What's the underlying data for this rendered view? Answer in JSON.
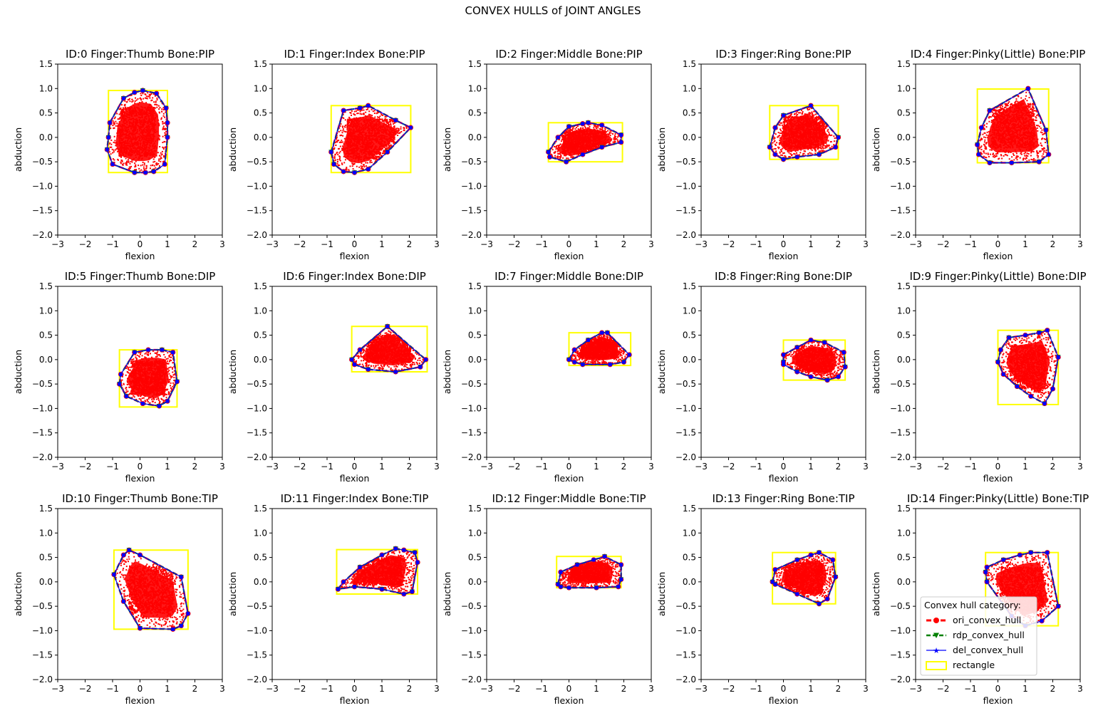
{
  "figure_title": "CONVEX HULLS of JOINT ANGLES",
  "colors": {
    "points": "#ff0000",
    "ori_hull": "#ff0000",
    "rdp_hull": "#008000",
    "del_hull": "#0000ff",
    "rectangle": "#ffff00",
    "frame": "#000000"
  },
  "legend": {
    "title": "Convex hull category:",
    "entries": [
      "ori_convex_hull",
      "rdp_convex_hull",
      "del_convex_hull",
      "rectangle"
    ]
  },
  "chart_data": [
    {
      "type": "scatter",
      "title": "ID:0  Finger:Thumb  Bone:PIP",
      "xlabel": "flexion",
      "ylabel": "abduction",
      "xlim": [
        -3,
        3
      ],
      "ylim": [
        -2,
        1.5
      ],
      "xticks": [
        "−3",
        "−2",
        "−1",
        "0",
        "1",
        "2",
        "3"
      ],
      "yticks": [
        "−2.0",
        "−1.5",
        "−1.0",
        "−0.5",
        "0.0",
        "0.5",
        "1.0",
        "1.5"
      ],
      "hull": [
        [
          -1.15,
          0.0
        ],
        [
          -1.1,
          0.3
        ],
        [
          -0.6,
          0.8
        ],
        [
          -0.2,
          0.92
        ],
        [
          0.1,
          0.96
        ],
        [
          0.6,
          0.9
        ],
        [
          0.95,
          0.6
        ],
        [
          1.0,
          0.3
        ],
        [
          1.0,
          0.0
        ],
        [
          0.9,
          -0.55
        ],
        [
          0.5,
          -0.7
        ],
        [
          0.2,
          -0.72
        ],
        [
          -0.2,
          -0.72
        ],
        [
          -1.0,
          -0.55
        ],
        [
          -1.2,
          -0.25
        ]
      ],
      "rect": [
        -1.15,
        -0.72,
        1.0,
        0.96
      ]
    },
    {
      "type": "scatter",
      "title": "ID:1  Finger:Index  Bone:PIP",
      "xlabel": "flexion",
      "ylabel": "abduction",
      "xlim": [
        -3,
        3
      ],
      "ylim": [
        -2,
        1.5
      ],
      "xticks": [
        "−3",
        "−2",
        "−1",
        "0",
        "1",
        "2",
        "3"
      ],
      "yticks": [
        "−2.0",
        "−1.5",
        "−1.0",
        "−0.5",
        "0.0",
        "0.5",
        "1.0",
        "1.5"
      ],
      "hull": [
        [
          -0.85,
          -0.3
        ],
        [
          -0.4,
          0.55
        ],
        [
          0.2,
          0.6
        ],
        [
          0.5,
          0.65
        ],
        [
          1.5,
          0.35
        ],
        [
          2.05,
          0.2
        ],
        [
          1.2,
          -0.3
        ],
        [
          0.5,
          -0.65
        ],
        [
          0.0,
          -0.72
        ],
        [
          -0.4,
          -0.7
        ],
        [
          -0.75,
          -0.55
        ]
      ],
      "rect": [
        -0.85,
        -0.72,
        2.05,
        0.65
      ]
    },
    {
      "type": "scatter",
      "title": "ID:2  Finger:Middle  Bone:PIP",
      "xlabel": "flexion",
      "ylabel": "abduction",
      "xlim": [
        -3,
        3
      ],
      "ylim": [
        -2,
        1.5
      ],
      "xticks": [
        "−3",
        "−2",
        "−1",
        "0",
        "1",
        "2",
        "3"
      ],
      "yticks": [
        "−2.0",
        "−1.5",
        "−1.0",
        "−0.5",
        "0.0",
        "0.5",
        "1.0",
        "1.5"
      ],
      "hull": [
        [
          -0.75,
          -0.3
        ],
        [
          -0.4,
          0.0
        ],
        [
          0.0,
          0.22
        ],
        [
          0.5,
          0.28
        ],
        [
          0.7,
          0.3
        ],
        [
          1.2,
          0.25
        ],
        [
          1.9,
          0.05
        ],
        [
          1.9,
          -0.1
        ],
        [
          1.2,
          -0.2
        ],
        [
          0.5,
          -0.35
        ],
        [
          -0.1,
          -0.5
        ],
        [
          -0.7,
          -0.4
        ]
      ],
      "rect": [
        -0.75,
        -0.5,
        1.95,
        0.3
      ]
    },
    {
      "type": "scatter",
      "title": "ID:3  Finger:Ring  Bone:PIP",
      "xlabel": "flexion",
      "ylabel": "abduction",
      "xlim": [
        -3,
        3
      ],
      "ylim": [
        -2,
        1.5
      ],
      "xticks": [
        "−3",
        "−2",
        "−1",
        "0",
        "1",
        "2",
        "3"
      ],
      "yticks": [
        "−2.0",
        "−1.5",
        "−1.0",
        "−0.5",
        "0.0",
        "0.5",
        "1.0",
        "1.5"
      ],
      "hull": [
        [
          -0.5,
          -0.2
        ],
        [
          -0.3,
          0.2
        ],
        [
          0.0,
          0.45
        ],
        [
          1.0,
          0.65
        ],
        [
          2.0,
          0.0
        ],
        [
          1.9,
          -0.2
        ],
        [
          1.3,
          -0.35
        ],
        [
          0.5,
          -0.4
        ],
        [
          0.0,
          -0.45
        ],
        [
          -0.3,
          -0.35
        ]
      ],
      "rect": [
        -0.5,
        -0.45,
        2.0,
        0.65
      ]
    },
    {
      "type": "scatter",
      "title": "ID:4  Finger:Pinky(Little)  Bone:PIP",
      "xlabel": "flexion",
      "ylabel": "abduction",
      "xlim": [
        -3,
        3
      ],
      "ylim": [
        -2,
        1.5
      ],
      "xticks": [
        "−3",
        "−2",
        "−1",
        "0",
        "1",
        "2",
        "3"
      ],
      "yticks": [
        "−2.0",
        "−1.5",
        "−1.0",
        "−0.5",
        "0.0",
        "0.5",
        "1.0",
        "1.5"
      ],
      "hull": [
        [
          -0.75,
          -0.15
        ],
        [
          -0.6,
          0.2
        ],
        [
          -0.3,
          0.55
        ],
        [
          1.1,
          1.0
        ],
        [
          1.75,
          0.15
        ],
        [
          1.85,
          -0.35
        ],
        [
          1.5,
          -0.5
        ],
        [
          0.5,
          -0.52
        ],
        [
          -0.3,
          -0.52
        ],
        [
          -0.7,
          -0.35
        ]
      ],
      "rect": [
        -0.75,
        -0.52,
        1.85,
        0.99
      ]
    },
    {
      "type": "scatter",
      "title": "ID:5  Finger:Thumb  Bone:DIP",
      "xlabel": "flexion",
      "ylabel": "abduction",
      "xlim": [
        -3,
        3
      ],
      "ylim": [
        -2,
        1.5
      ],
      "xticks": [
        "−3",
        "−2",
        "−1",
        "0",
        "1",
        "2",
        "3"
      ],
      "yticks": [
        "−2.0",
        "−1.5",
        "−1.0",
        "−0.5",
        "0.0",
        "0.5",
        "1.0",
        "1.5"
      ],
      "hull": [
        [
          -0.75,
          -0.5
        ],
        [
          -0.7,
          -0.3
        ],
        [
          -0.2,
          0.15
        ],
        [
          0.3,
          0.2
        ],
        [
          0.8,
          0.2
        ],
        [
          1.2,
          0.15
        ],
        [
          1.35,
          -0.45
        ],
        [
          1.0,
          -0.85
        ],
        [
          0.7,
          -0.95
        ],
        [
          0.1,
          -0.9
        ],
        [
          -0.5,
          -0.75
        ]
      ],
      "rect": [
        -0.75,
        -0.97,
        1.35,
        0.2
      ]
    },
    {
      "type": "scatter",
      "title": "ID:6  Finger:Index  Bone:DIP",
      "xlabel": "flexion",
      "ylabel": "abduction",
      "xlim": [
        -3,
        3
      ],
      "ylim": [
        -2,
        1.5
      ],
      "xticks": [
        "−3",
        "−2",
        "−1",
        "0",
        "1",
        "2",
        "3"
      ],
      "yticks": [
        "−2.0",
        "−1.5",
        "−1.0",
        "−0.5",
        "0.0",
        "0.5",
        "1.0",
        "1.5"
      ],
      "hull": [
        [
          -0.1,
          0.0
        ],
        [
          0.2,
          0.2
        ],
        [
          1.2,
          0.68
        ],
        [
          2.6,
          0.0
        ],
        [
          2.4,
          -0.15
        ],
        [
          1.5,
          -0.25
        ],
        [
          0.5,
          -0.2
        ],
        [
          0.0,
          -0.1
        ]
      ],
      "rect": [
        -0.1,
        -0.25,
        2.65,
        0.68
      ]
    },
    {
      "type": "scatter",
      "title": "ID:7  Finger:Middle  Bone:DIP",
      "xlabel": "flexion",
      "ylabel": "abduction",
      "xlim": [
        -3,
        3
      ],
      "ylim": [
        -2,
        1.5
      ],
      "xticks": [
        "−3",
        "−2",
        "−1",
        "0",
        "1",
        "2",
        "3"
      ],
      "yticks": [
        "−2.0",
        "−1.5",
        "−1.0",
        "−0.5",
        "0.0",
        "0.5",
        "1.0",
        "1.5"
      ],
      "hull": [
        [
          0.0,
          0.0
        ],
        [
          0.2,
          0.2
        ],
        [
          0.7,
          0.4
        ],
        [
          1.2,
          0.55
        ],
        [
          1.4,
          0.55
        ],
        [
          2.2,
          0.1
        ],
        [
          2.0,
          -0.05
        ],
        [
          1.5,
          -0.1
        ],
        [
          0.5,
          -0.1
        ],
        [
          0.2,
          -0.05
        ]
      ],
      "rect": [
        0.0,
        -0.12,
        2.25,
        0.55
      ]
    },
    {
      "type": "scatter",
      "title": "ID:8  Finger:Ring  Bone:DIP",
      "xlabel": "flexion",
      "ylabel": "abduction",
      "xlim": [
        -3,
        3
      ],
      "ylim": [
        -2,
        1.5
      ],
      "xticks": [
        "−3",
        "−2",
        "−1",
        "0",
        "1",
        "2",
        "3"
      ],
      "yticks": [
        "−2.0",
        "−1.5",
        "−1.0",
        "−0.5",
        "0.0",
        "0.5",
        "1.0",
        "1.5"
      ],
      "hull": [
        [
          0.0,
          -0.05
        ],
        [
          0.0,
          0.1
        ],
        [
          0.5,
          0.25
        ],
        [
          1.0,
          0.4
        ],
        [
          1.5,
          0.35
        ],
        [
          2.2,
          0.15
        ],
        [
          2.25,
          -0.15
        ],
        [
          2.0,
          -0.35
        ],
        [
          1.6,
          -0.42
        ],
        [
          1.0,
          -0.35
        ],
        [
          0.5,
          -0.25
        ],
        [
          0.0,
          -0.1
        ]
      ],
      "rect": [
        0.0,
        -0.42,
        2.25,
        0.4
      ]
    },
    {
      "type": "scatter",
      "title": "ID:9  Finger:Pinky(Little)  Bone:DIP",
      "xlabel": "flexion",
      "ylabel": "abduction",
      "xlim": [
        -3,
        3
      ],
      "ylim": [
        -2,
        1.5
      ],
      "xticks": [
        "−3",
        "−2",
        "−1",
        "0",
        "1",
        "2",
        "3"
      ],
      "yticks": [
        "−2.0",
        "−1.5",
        "−1.0",
        "−0.5",
        "0.0",
        "0.5",
        "1.0",
        "1.5"
      ],
      "hull": [
        [
          0.0,
          -0.05
        ],
        [
          0.1,
          0.2
        ],
        [
          0.4,
          0.45
        ],
        [
          1.0,
          0.5
        ],
        [
          1.5,
          0.55
        ],
        [
          1.8,
          0.6
        ],
        [
          2.2,
          0.05
        ],
        [
          2.0,
          -0.6
        ],
        [
          1.7,
          -0.9
        ],
        [
          1.2,
          -0.75
        ],
        [
          0.7,
          -0.55
        ],
        [
          0.2,
          -0.3
        ]
      ],
      "rect": [
        0.0,
        -0.92,
        2.2,
        0.6
      ]
    },
    {
      "type": "scatter",
      "title": "ID:10  Finger:Thumb  Bone:TIP",
      "xlabel": "flexion",
      "ylabel": "abduction",
      "xlim": [
        -3,
        3
      ],
      "ylim": [
        -2,
        1.5
      ],
      "xticks": [
        "−3",
        "−2",
        "−1",
        "0",
        "1",
        "2",
        "3"
      ],
      "yticks": [
        "−2.0",
        "−1.5",
        "−1.0",
        "−0.5",
        "0.0",
        "0.5",
        "1.0",
        "1.5"
      ],
      "hull": [
        [
          -0.95,
          0.15
        ],
        [
          -0.6,
          0.55
        ],
        [
          -0.4,
          0.65
        ],
        [
          0.0,
          0.55
        ],
        [
          1.5,
          0.1
        ],
        [
          1.75,
          -0.65
        ],
        [
          1.5,
          -0.9
        ],
        [
          1.2,
          -0.97
        ],
        [
          0.0,
          -0.95
        ],
        [
          -0.6,
          -0.4
        ]
      ],
      "rect": [
        -0.95,
        -0.97,
        1.75,
        0.65
      ]
    },
    {
      "type": "scatter",
      "title": "ID:11  Finger:Index  Bone:TIP",
      "xlabel": "flexion",
      "ylabel": "abduction",
      "xlim": [
        -3,
        3
      ],
      "ylim": [
        -2,
        1.5
      ],
      "xticks": [
        "−3",
        "−2",
        "−1",
        "0",
        "1",
        "2",
        "3"
      ],
      "yticks": [
        "−2.0",
        "−1.5",
        "−1.0",
        "−0.5",
        "0.0",
        "0.5",
        "1.0",
        "1.5"
      ],
      "hull": [
        [
          -0.6,
          -0.15
        ],
        [
          -0.4,
          0.0
        ],
        [
          0.2,
          0.3
        ],
        [
          1.0,
          0.55
        ],
        [
          1.5,
          0.68
        ],
        [
          1.8,
          0.65
        ],
        [
          2.2,
          0.6
        ],
        [
          2.3,
          0.4
        ],
        [
          2.1,
          -0.2
        ],
        [
          1.8,
          -0.25
        ],
        [
          1.0,
          -0.15
        ],
        [
          0.0,
          -0.1
        ]
      ],
      "rect": [
        -0.65,
        -0.25,
        2.3,
        0.66
      ]
    },
    {
      "type": "scatter",
      "title": "ID:12  Finger:Middle  Bone:TIP",
      "xlabel": "flexion",
      "ylabel": "abduction",
      "xlim": [
        -3,
        3
      ],
      "ylim": [
        -2,
        1.5
      ],
      "xticks": [
        "−3",
        "−2",
        "−1",
        "0",
        "1",
        "2",
        "3"
      ],
      "yticks": [
        "−2.0",
        "−1.5",
        "−1.0",
        "−0.5",
        "0.0",
        "0.5",
        "1.0",
        "1.5"
      ],
      "hull": [
        [
          -0.4,
          -0.05
        ],
        [
          -0.3,
          0.2
        ],
        [
          0.3,
          0.35
        ],
        [
          0.9,
          0.45
        ],
        [
          1.3,
          0.52
        ],
        [
          1.9,
          0.35
        ],
        [
          1.9,
          0.05
        ],
        [
          1.8,
          -0.1
        ],
        [
          1.0,
          -0.12
        ],
        [
          0.0,
          -0.12
        ],
        [
          -0.3,
          -0.1
        ]
      ],
      "rect": [
        -0.45,
        -0.12,
        1.9,
        0.52
      ]
    },
    {
      "type": "scatter",
      "title": "ID:13  Finger:Ring  Bone:TIP",
      "xlabel": "flexion",
      "ylabel": "abduction",
      "xlim": [
        -3,
        3
      ],
      "ylim": [
        -2,
        1.5
      ],
      "xticks": [
        "−3",
        "−2",
        "−1",
        "0",
        "1",
        "2",
        "3"
      ],
      "yticks": [
        "−2.0",
        "−1.5",
        "−1.0",
        "−0.5",
        "0.0",
        "0.5",
        "1.0",
        "1.5"
      ],
      "hull": [
        [
          -0.4,
          0.0
        ],
        [
          -0.3,
          0.25
        ],
        [
          0.5,
          0.45
        ],
        [
          1.0,
          0.55
        ],
        [
          1.3,
          0.6
        ],
        [
          1.8,
          0.45
        ],
        [
          1.9,
          0.1
        ],
        [
          1.6,
          -0.35
        ],
        [
          1.3,
          -0.45
        ],
        [
          0.5,
          -0.25
        ],
        [
          -0.3,
          -0.05
        ]
      ],
      "rect": [
        -0.4,
        -0.45,
        1.9,
        0.6
      ]
    },
    {
      "type": "scatter",
      "title": "ID:14  Finger:Pinky(Little)  Bone:TIP",
      "xlabel": "flexion",
      "ylabel": "abduction",
      "xlim": [
        -3,
        3
      ],
      "ylim": [
        -2,
        1.5
      ],
      "xticks": [
        "−3",
        "−2",
        "−1",
        "0",
        "1",
        "2",
        "3"
      ],
      "yticks": [
        "−2.0",
        "−1.5",
        "−1.0",
        "−0.5",
        "0.0",
        "0.5",
        "1.0",
        "1.5"
      ],
      "hull": [
        [
          -0.45,
          0.2
        ],
        [
          -0.4,
          0.3
        ],
        [
          0.2,
          0.45
        ],
        [
          0.8,
          0.55
        ],
        [
          1.2,
          0.6
        ],
        [
          1.8,
          0.6
        ],
        [
          2.2,
          -0.5
        ],
        [
          1.6,
          -0.8
        ],
        [
          1.0,
          -0.9
        ],
        [
          0.5,
          -0.7
        ],
        [
          -0.4,
          0.0
        ]
      ],
      "rect": [
        -0.45,
        -0.9,
        2.2,
        0.6
      ],
      "legend": true
    }
  ]
}
